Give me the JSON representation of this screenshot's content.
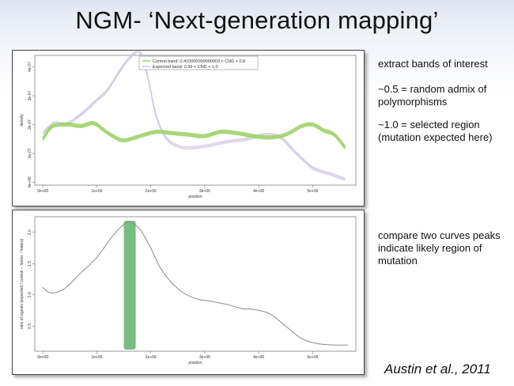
{
  "slide": {
    "title": "NGM- ‘Next-generation mapping’",
    "notes": [
      "extract bands of interest",
      "~0.5 = random admix of polymorphisms",
      "~1.0 = selected region (mutation expected here)",
      "compare two curves peaks indicate likely region of mutation"
    ],
    "citation": "Austin et al., 2011"
  },
  "colors": {
    "control": "#9ed26a",
    "expected": "#cfc4dc",
    "ratio_line": "#8a8a8a",
    "highlight": "#5fb36a"
  },
  "chart_data": [
    {
      "type": "line",
      "title": "",
      "xlabel": "position",
      "ylabel": "density",
      "xlim": [
        -150000,
        5800000
      ],
      "ylim": [
        -1e-08,
        4.4e-07
      ],
      "x_ticks": [
        "0e+00",
        "1e+06",
        "2e+06",
        "3e+06",
        "4e+06",
        "5e+06"
      ],
      "y_ticks": [
        "0e+00",
        "1e-07",
        "2e-07",
        "3e-07",
        "4e-07"
      ],
      "legend_position": "top-center",
      "series": [
        {
          "name": "Control band: 0.410000000000003 < CND < 0.8",
          "x": [
            0,
            150000,
            300000,
            500000,
            700000,
            900000,
            1000000,
            1100000,
            1300000,
            1500000,
            1800000,
            2100000,
            2400000,
            2700000,
            3000000,
            3300000,
            3600000,
            3900000,
            4200000,
            4500000,
            4800000,
            5000000,
            5200000,
            5400000,
            5600000
          ],
          "values": [
            1.5e-07,
            1.9e-07,
            2e-07,
            2e-07,
            1.95e-07,
            2.05e-07,
            2e-07,
            1.85e-07,
            1.6e-07,
            1.45e-07,
            1.6e-07,
            1.75e-07,
            1.7e-07,
            1.65e-07,
            1.6e-07,
            1.75e-07,
            1.7e-07,
            1.6e-07,
            1.55e-07,
            1.65e-07,
            1.95e-07,
            2e-07,
            1.8e-07,
            1.65e-07,
            1.2e-07
          ]
        },
        {
          "name": "Expected band: 0.99 < CND < 1.0",
          "x": [
            0,
            200000,
            400000,
            600000,
            800000,
            1000000,
            1200000,
            1400000,
            1600000,
            1800000,
            1950000,
            2100000,
            2300000,
            2600000,
            3000000,
            3400000,
            3800000,
            4100000,
            4400000,
            4700000,
            5000000,
            5300000,
            5600000
          ],
          "values": [
            1.7e-07,
            2.05e-07,
            2e-07,
            2.2e-07,
            2.5e-07,
            2.85e-07,
            3.2e-07,
            3.8e-07,
            4.3e-07,
            4.5e-07,
            3.6e-07,
            2.3e-07,
            1.5e-07,
            1.2e-07,
            1.25e-07,
            1.4e-07,
            1.5e-07,
            1.65e-07,
            1.55e-07,
            1e-07,
            5e-08,
            3e-08,
            1e-08
          ]
        }
      ]
    },
    {
      "type": "line",
      "title": "",
      "xlabel": "position",
      "ylabel": "ratio of signals (expected / control -- homo. / hetero)",
      "xlim": [
        -150000,
        5800000
      ],
      "ylim": [
        0.1,
        2.25
      ],
      "x_ticks": [
        "0e+00",
        "1e+06",
        "2e+06",
        "3e+06",
        "4e+06",
        "5e+06"
      ],
      "y_ticks": [
        "0.5",
        "1.0",
        "1.5",
        "2.0"
      ],
      "highlight_region": [
        1500000,
        1720000
      ],
      "series": [
        {
          "name": "",
          "x": [
            0,
            150000,
            400000,
            700000,
            1000000,
            1300000,
            1550000,
            1650000,
            1800000,
            2000000,
            2200000,
            2500000,
            2800000,
            3100000,
            3400000,
            3700000,
            3900000,
            4200000,
            4500000,
            4800000,
            5100000,
            5400000,
            5650000
          ],
          "values": [
            1.12,
            1.03,
            1.1,
            1.35,
            1.6,
            1.95,
            2.16,
            2.15,
            2.05,
            1.75,
            1.4,
            1.1,
            0.95,
            0.9,
            0.85,
            0.78,
            0.77,
            0.7,
            0.5,
            0.3,
            0.22,
            0.2,
            0.2
          ]
        }
      ]
    }
  ]
}
